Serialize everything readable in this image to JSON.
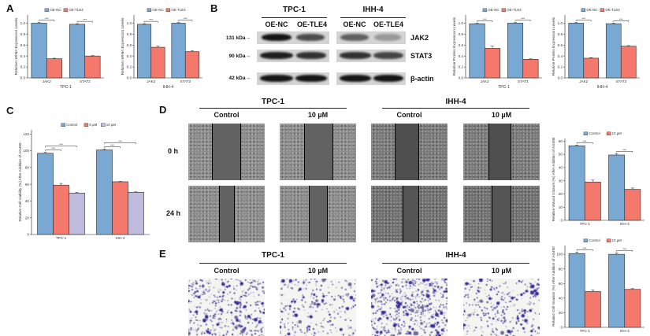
{
  "panels": {
    "a": "A",
    "b": "B",
    "c": "C",
    "d": "D",
    "e": "E"
  },
  "western_blot": {
    "cell_lines": [
      "TPC-1",
      "IHH-4"
    ],
    "lanes": [
      "OE-NC",
      "OE-TLE4",
      "OE-NC",
      "OE-TLE4"
    ],
    "markers": [
      "131 kDa→",
      "90 kDa→",
      "42 kDa→"
    ],
    "proteins": [
      "JAK2",
      "STAT3",
      "β-actin"
    ]
  },
  "wound_healing": {
    "cell_lines": [
      "TPC-1",
      "IHH-4"
    ],
    "conditions": [
      "Control",
      "10 µM",
      "Control",
      "10 µM"
    ],
    "timepoints": [
      "0 h",
      "24 h"
    ]
  },
  "transwell": {
    "cell_lines": [
      "TPC-1",
      "IHH-4"
    ],
    "conditions": [
      "Control",
      "10 µM",
      "Control",
      "10 µM"
    ]
  },
  "colors": {
    "blue": "#79a9d3",
    "red": "#f4786b",
    "lavender": "#bfbbdc",
    "stain": "#3a2f9c"
  },
  "chart_data": [
    {
      "id": "A-TPC1",
      "type": "bar",
      "title": "",
      "ylabel": "Relative mRNA Expression Levels",
      "xlabel": "TPC-1",
      "categories": [
        "JAK2",
        "STAT3"
      ],
      "series": [
        {
          "name": "OE-NC",
          "color": "#79a9d3",
          "values": [
            1.0,
            0.98
          ],
          "errors": [
            0.01,
            0.01
          ]
        },
        {
          "name": "OE-TLE4",
          "color": "#f4786b",
          "values": [
            0.35,
            0.4
          ],
          "errors": [
            0.01,
            0.01
          ]
        }
      ],
      "ylim": [
        0,
        1.15
      ],
      "yticks": [
        0,
        0.2,
        0.4,
        0.6,
        0.8,
        1.0
      ],
      "ytick_labels": [
        "0.0",
        "0.2",
        "0.4",
        "0.6",
        "0.8",
        "1.0"
      ],
      "significance": [
        {
          "from": 0,
          "to": 1,
          "label": "***"
        }
      ],
      "legend": "top-center",
      "grid": false
    },
    {
      "id": "A-IHH4",
      "type": "bar",
      "title": "",
      "ylabel": "Relative mRNA Expression Levels",
      "xlabel": "IHH-4",
      "categories": [
        "JAK2",
        "STAT3"
      ],
      "series": [
        {
          "name": "OE-NC",
          "color": "#79a9d3",
          "values": [
            0.98,
            1.0
          ],
          "errors": [
            0.01,
            0.01
          ]
        },
        {
          "name": "OE-TLE4",
          "color": "#f4786b",
          "values": [
            0.56,
            0.48
          ],
          "errors": [
            0.02,
            0.02
          ]
        }
      ],
      "ylim": [
        0,
        1.15
      ],
      "yticks": [
        0,
        0.2,
        0.4,
        0.6,
        0.8,
        1.0
      ],
      "ytick_labels": [
        "0.0",
        "0.2",
        "0.4",
        "0.6",
        "0.8",
        "1.0"
      ],
      "significance": [
        {
          "from": 0,
          "to": 1,
          "label": "***"
        }
      ],
      "legend": "top-center",
      "grid": false
    },
    {
      "id": "B-TPC1",
      "type": "bar",
      "title": "",
      "ylabel": "Relative Protein Expression Levels",
      "xlabel": "TPC-1",
      "categories": [
        "JAK2",
        "STAT3"
      ],
      "series": [
        {
          "name": "OE-NC",
          "color": "#79a9d3",
          "values": [
            0.99,
            1.0
          ],
          "errors": [
            0.01,
            0.01
          ]
        },
        {
          "name": "OE-TLE4",
          "color": "#f4786b",
          "values": [
            0.54,
            0.34
          ],
          "errors": [
            0.04,
            0.01
          ]
        }
      ],
      "ylim": [
        0,
        1.15
      ],
      "yticks": [
        0,
        0.2,
        0.4,
        0.6,
        0.8,
        1.0
      ],
      "ytick_labels": [
        "0.0",
        "0.2",
        "0.4",
        "0.6",
        "0.8",
        "1.0"
      ],
      "significance": [
        {
          "from": 0,
          "to": 1,
          "label": "***"
        }
      ],
      "legend": "top-center",
      "grid": false
    },
    {
      "id": "B-IHH4",
      "type": "bar",
      "title": "",
      "ylabel": "Relative Protein Expression Levels",
      "xlabel": "IHH-4",
      "categories": [
        "JAK2",
        "STAT3"
      ],
      "series": [
        {
          "name": "OE-NC",
          "color": "#79a9d3",
          "values": [
            1.0,
            0.99
          ],
          "errors": [
            0.01,
            0.01
          ]
        },
        {
          "name": "OE-TLE4",
          "color": "#f4786b",
          "values": [
            0.36,
            0.58
          ],
          "errors": [
            0.01,
            0.01
          ]
        }
      ],
      "ylim": [
        0,
        1.15
      ],
      "yticks": [
        0,
        0.2,
        0.4,
        0.6,
        0.8,
        1.0
      ],
      "ytick_labels": [
        "0.0",
        "0.2",
        "0.4",
        "0.6",
        "0.8",
        "1.0"
      ],
      "significance": [
        {
          "from": 0,
          "to": 1,
          "label": "***"
        }
      ],
      "legend": "top-center",
      "grid": false
    },
    {
      "id": "C",
      "type": "bar",
      "title": "",
      "ylabel": "Relative Cell Viability (%) After Addition of AG490",
      "xlabel": "",
      "categories": [
        "TPC-1",
        "IHH-4"
      ],
      "series": [
        {
          "name": "Control",
          "color": "#79a9d3",
          "values": [
            97,
            101
          ],
          "errors": [
            1,
            1
          ]
        },
        {
          "name": "5 µM",
          "color": "#f4786b",
          "values": [
            59,
            63
          ],
          "errors": [
            2,
            0.5
          ]
        },
        {
          "name": "10 µM",
          "color": "#bfbbdc",
          "values": [
            49.5,
            50.5
          ],
          "errors": [
            1,
            0.5
          ]
        }
      ],
      "ylim": [
        0,
        125
      ],
      "yticks": [
        0,
        20,
        40,
        60,
        80,
        100,
        120
      ],
      "ytick_labels": [
        "0",
        "20",
        "40",
        "60",
        "80",
        "100",
        "120"
      ],
      "significance": [
        {
          "from": 0,
          "to": 1,
          "label": "***"
        },
        {
          "from": 0,
          "to": 2,
          "label": "***"
        }
      ],
      "legend": "top-center",
      "grid": false
    },
    {
      "id": "D",
      "type": "bar",
      "title": "",
      "ylabel": "Relative Wound Closure (%) After Addition of AG490",
      "xlabel": "",
      "categories": [
        "TPC-1",
        "IHH-4"
      ],
      "series": [
        {
          "name": "Control",
          "color": "#79a9d3",
          "values": [
            56.5,
            49.5
          ],
          "errors": [
            0.5,
            1
          ]
        },
        {
          "name": "10 µM",
          "color": "#f4786b",
          "values": [
            29,
            23.5
          ],
          "errors": [
            1.5,
            1
          ]
        }
      ],
      "ylim": [
        0,
        62
      ],
      "yticks": [
        0,
        10,
        20,
        30,
        40,
        50,
        60
      ],
      "ytick_labels": [
        "0",
        "10",
        "20",
        "30",
        "40",
        "50",
        "60"
      ],
      "significance": [
        {
          "from": 0,
          "to": 1,
          "label": "***"
        }
      ],
      "legend": "top-center",
      "grid": false
    },
    {
      "id": "E",
      "type": "bar",
      "title": "",
      "ylabel": "Relative Cell Invasion (%) After Addition of AG490",
      "xlabel": "",
      "categories": [
        "TPC-1",
        "IHH-4"
      ],
      "series": [
        {
          "name": "Control",
          "color": "#79a9d3",
          "values": [
            101,
            100
          ],
          "errors": [
            2,
            2
          ]
        },
        {
          "name": "10 µM",
          "color": "#f4786b",
          "values": [
            49,
            52
          ],
          "errors": [
            2,
            1
          ]
        }
      ],
      "ylim": [
        0,
        112
      ],
      "yticks": [
        0,
        20,
        40,
        60,
        80,
        100
      ],
      "ytick_labels": [
        "0",
        "20",
        "40",
        "60",
        "80",
        "100"
      ],
      "significance": [
        {
          "from": 0,
          "to": 1,
          "label": "***"
        }
      ],
      "legend": "top-center",
      "grid": false
    }
  ]
}
